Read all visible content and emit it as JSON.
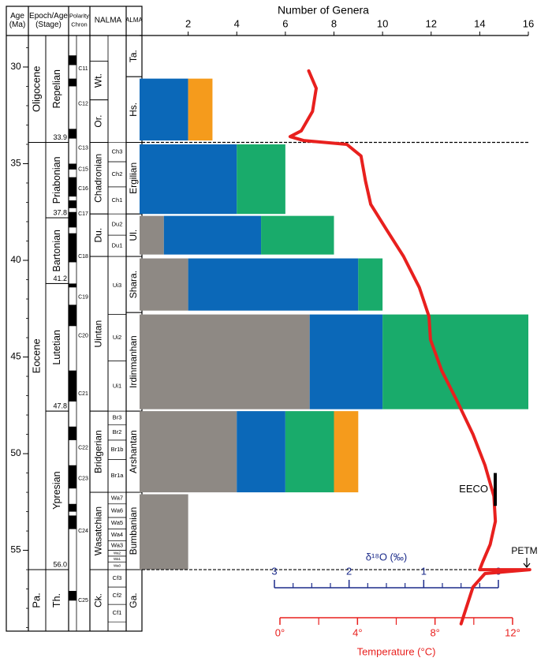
{
  "chart_data": {
    "type": "bar",
    "x_label": "Number of Genera",
    "xlim": [
      0,
      16
    ],
    "xticks": [
      2,
      4,
      6,
      8,
      10,
      12,
      14,
      16
    ],
    "ylim": [
      28.37,
      59.18
    ],
    "yticks": [
      30,
      35,
      40,
      45,
      50,
      55
    ],
    "bar_ages": [
      [
        30.6,
        33.8
      ],
      [
        34.0,
        37.6
      ],
      [
        37.7,
        39.7
      ],
      [
        39.9,
        42.6
      ],
      [
        42.8,
        47.7
      ],
      [
        47.8,
        52.0
      ],
      [
        52.1,
        56.0
      ]
    ],
    "series": [
      {
        "color": "#8e8984",
        "values": [
          0,
          0,
          1,
          2,
          7,
          4,
          2
        ]
      },
      {
        "color": "#0b68b8",
        "values": [
          2,
          4,
          4,
          7,
          3,
          2,
          0
        ]
      },
      {
        "color": "#19ab6b",
        "values": [
          0,
          2,
          3,
          1,
          6,
          2,
          0
        ]
      },
      {
        "color": "#f59b1c",
        "values": [
          1,
          0,
          0,
          0,
          0,
          1,
          0
        ]
      }
    ],
    "dashed_lines": [
      33.9,
      56
    ],
    "line": {
      "color": "#e8201e",
      "values": [
        2.54,
        2.44,
        2.49,
        2.64,
        2.79,
        2.61,
        2.03,
        1.84,
        1.78,
        1.71,
        1.5,
        1.27,
        1.06,
        0.93,
        0.91,
        0.76,
        0.55,
        0.34,
        0.18,
        0.06,
        0.04,
        0.11,
        0.21,
        0.25,
        -0.42,
        0.18,
        0.34,
        0.5
      ],
      "ages": [
        30.2,
        31.1,
        32.3,
        33.3,
        33.6,
        33.8,
        34.0,
        34.6,
        35.9,
        37.1,
        38.4,
        39.8,
        41.4,
        42.9,
        44.1,
        45.7,
        47.3,
        49.0,
        50.6,
        52.2,
        53.5,
        54.7,
        55.6,
        56.0,
        56.0,
        56.2,
        56.9,
        58.8
      ]
    },
    "d18o_axis": {
      "label": "δ¹⁸O (‰)",
      "color": "#1b2b8a",
      "lim": [
        3,
        0
      ],
      "ticks": [
        3,
        2,
        1,
        0
      ],
      "minor_ticks": [
        2.75,
        2.5,
        2.25,
        1.75,
        1.5,
        1.25,
        0.75,
        0.5,
        0.25
      ]
    },
    "temp_axis": {
      "label": "Temperature (°C)",
      "color": "#e8201e",
      "lim": [
        0,
        12
      ],
      "ticks": [
        {
          "value": 0,
          "label": "0°"
        },
        {
          "value": 4,
          "label": "4°"
        },
        {
          "value": 8,
          "label": "8°"
        },
        {
          "value": 12,
          "label": "12°"
        }
      ],
      "minor_ticks": [
        2,
        6,
        10
      ]
    },
    "annotations": {
      "eeco": "EECO",
      "eeco_range": [
        51.0,
        52.7
      ],
      "petm": "PETM"
    },
    "columns": {
      "headers": {
        "age": [
          "Age",
          "(Ma)"
        ],
        "epoch": [
          "Epoch/Age",
          "(Stage)"
        ],
        "polarity": [
          "Polarity",
          "Chron"
        ],
        "nalma": [
          "NALMA"
        ],
        "alma": [
          "ALMA"
        ]
      },
      "epochs": [
        {
          "label": "Oligocene",
          "top": 28.37,
          "bottom": 33.9
        },
        {
          "label": "Eocene",
          "top": 33.9,
          "bottom": 56
        },
        {
          "label": "Pa.",
          "top": 56,
          "bottom": 59.18
        }
      ],
      "stages": [
        {
          "label": "Repelian",
          "top": 28.37,
          "bottom": 33.9
        },
        {
          "label": "Priabonian",
          "top": 33.9,
          "bottom": 37.8
        },
        {
          "label": "Bartonian",
          "top": 37.8,
          "bottom": 41.2
        },
        {
          "label": "Lutetian",
          "top": 41.2,
          "bottom": 47.8
        },
        {
          "label": "Ypresian",
          "top": 47.8,
          "bottom": 56
        },
        {
          "label": "Th.",
          "top": 56,
          "bottom": 59.18
        }
      ],
      "boundary_labels": [
        33.9,
        37.8,
        41.2,
        47.8,
        {
          "value": 56,
          "label": "56.0"
        }
      ],
      "polarity_normal": [
        [
          29.4,
          29.9
        ],
        [
          30.6,
          31.0
        ],
        [
          33.2,
          33.7
        ],
        [
          35.0,
          35.3
        ],
        [
          35.7,
          36.7
        ],
        [
          36.9,
          37.3
        ],
        [
          37.5,
          38.3
        ],
        [
          38.6,
          40.1
        ],
        [
          41.2,
          41.4
        ],
        [
          42.3,
          43.4
        ],
        [
          45.7,
          47.3
        ],
        [
          48.6,
          49.3
        ],
        [
          50.6,
          51.8
        ],
        [
          52.6,
          53.0
        ],
        [
          53.2,
          53.9
        ],
        [
          57.1,
          57.6
        ]
      ],
      "chrons": [
        {
          "label": "C11",
          "age": 30.1
        },
        {
          "label": "C12",
          "age": 31.9
        },
        {
          "label": "C13",
          "age": 34.2
        },
        {
          "label": "C15",
          "age": 35.3
        },
        {
          "label": "C16",
          "age": 36.3
        },
        {
          "label": "C17",
          "age": 37.6
        },
        {
          "label": "C18",
          "age": 39.8
        },
        {
          "label": "C19",
          "age": 41.9
        },
        {
          "label": "C20",
          "age": 43.9
        },
        {
          "label": "C21",
          "age": 46.9
        },
        {
          "label": "C22",
          "age": 49.7
        },
        {
          "label": "C23",
          "age": 51.3
        },
        {
          "label": "C24",
          "age": 54.0
        },
        {
          "label": "C25",
          "age": 57.6
        }
      ],
      "nalma": [
        {
          "label": "Wt.",
          "top": 29.7,
          "bottom": 31.7
        },
        {
          "label": "Or.",
          "top": 31.7,
          "bottom": 33.9
        },
        {
          "label": "Chadronian",
          "top": 33.9,
          "bottom": 37.6
        },
        {
          "label": "Du.",
          "top": 37.6,
          "bottom": 39.8
        },
        {
          "label": "Uintan",
          "top": 39.8,
          "bottom": 47.8
        },
        {
          "label": "Bridgerian",
          "top": 47.8,
          "bottom": 52.0
        },
        {
          "label": "Wasatchian",
          "top": 52.0,
          "bottom": 56
        },
        {
          "label": "Ck.",
          "top": 56,
          "bottom": 59.18
        }
      ],
      "nalma_sub": [
        {
          "label": "Ch3",
          "top": 33.9,
          "bottom": 34.9
        },
        {
          "label": "Ch2",
          "top": 34.9,
          "bottom": 36.2
        },
        {
          "label": "Ch1",
          "top": 36.2,
          "bottom": 37.6
        },
        {
          "label": "Du2",
          "top": 37.6,
          "bottom": 38.7
        },
        {
          "label": "Du1",
          "top": 38.7,
          "bottom": 39.8
        },
        {
          "label": "Ui3",
          "top": 39.8,
          "bottom": 42.8
        },
        {
          "label": "Ui2",
          "top": 42.8,
          "bottom": 45.2
        },
        {
          "label": "Ui1",
          "top": 45.2,
          "bottom": 47.8
        },
        {
          "label": "Br3",
          "top": 47.8,
          "bottom": 48.5
        },
        {
          "label": "Br2",
          "top": 48.5,
          "bottom": 49.3
        },
        {
          "label": "Br1b",
          "top": 49.3,
          "bottom": 50.3
        },
        {
          "label": "Br1a",
          "top": 50.3,
          "bottom": 52.0
        },
        {
          "label": "Wa7",
          "top": 52.0,
          "bottom": 52.6
        },
        {
          "label": "Wa6",
          "top": 52.6,
          "bottom": 53.3
        },
        {
          "label": "Wa5",
          "top": 53.3,
          "bottom": 53.9
        },
        {
          "label": "Wa4",
          "top": 53.9,
          "bottom": 54.5
        },
        {
          "label": "Wa3",
          "top": 54.5,
          "bottom": 55.0
        },
        {
          "label": "Wa2",
          "top": 55.0,
          "bottom": 55.3
        },
        {
          "label": "Wa1",
          "top": 55.3,
          "bottom": 55.6
        },
        {
          "label": "Wa0",
          "top": 55.6,
          "bottom": 56
        },
        {
          "label": "Cf3",
          "top": 56,
          "bottom": 56.9
        },
        {
          "label": "Cf2",
          "top": 56.9,
          "bottom": 57.8
        },
        {
          "label": "Cf1",
          "top": 57.8,
          "bottom": 58.7
        }
      ],
      "alma": [
        {
          "label": "Ta.",
          "top": 28.37,
          "bottom": 30.5
        },
        {
          "label": "Hs.",
          "top": 30.5,
          "bottom": 33.9
        },
        {
          "label": "Ergilian",
          "top": 33.9,
          "bottom": 37.6
        },
        {
          "label": "Ul.",
          "top": 37.6,
          "bottom": 39.8
        },
        {
          "label": "Shara.",
          "top": 39.8,
          "bottom": 42.7
        },
        {
          "label": "Irdinmanhan",
          "top": 42.7,
          "bottom": 47.8
        },
        {
          "label": "Arshantan",
          "top": 47.8,
          "bottom": 52.0
        },
        {
          "label": "Bumbanian",
          "top": 52.0,
          "bottom": 56
        },
        {
          "label": "Ga.",
          "top": 56,
          "bottom": 59.18
        }
      ]
    }
  }
}
